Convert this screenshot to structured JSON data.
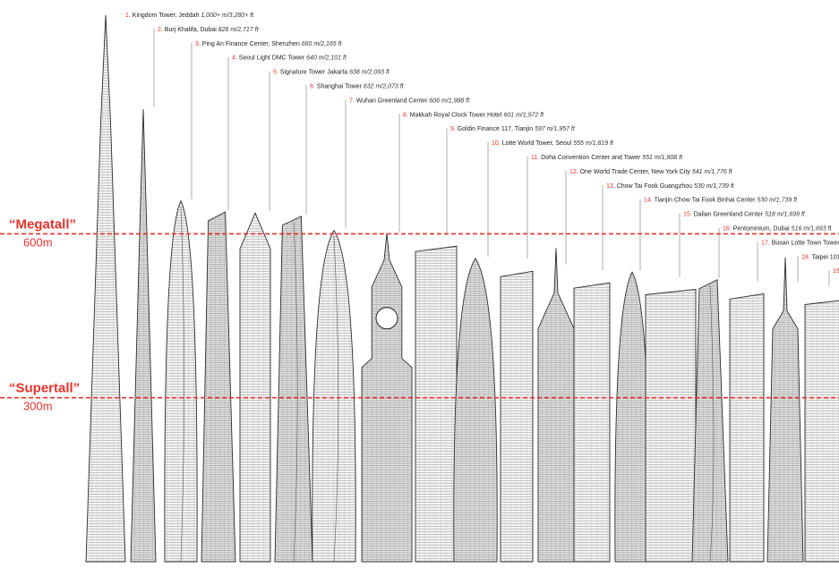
{
  "thresholds": [
    {
      "name": "“Megatall”",
      "value": "600m",
      "meters": 600,
      "color": "#e8322b"
    },
    {
      "name": "“Supertall”",
      "value": "300m",
      "meters": 300,
      "color": "#e8322b"
    }
  ],
  "buildings": [
    {
      "rank": "1.",
      "name": "Kingdom Tower, Jeddah",
      "height": "1,000+ m/3,280+ ft",
      "meters": 1000
    },
    {
      "rank": "2.",
      "name": "Burj Khalifa, Dubai",
      "height": "828 m/2,717 ft",
      "meters": 828
    },
    {
      "rank": "3.",
      "name": "Ping An Finance Center, Shenzhen",
      "height": "660 m/2,165 ft",
      "meters": 660
    },
    {
      "rank": "4.",
      "name": "Seoul Light DMC Tower",
      "height": "640 m/2,101 ft",
      "meters": 640
    },
    {
      "rank": "5.",
      "name": "Signature Tower Jakarta",
      "height": "638 m/2,093 ft",
      "meters": 638
    },
    {
      "rank": "6.",
      "name": "Shanghai Tower",
      "height": "632 m/2,073 ft",
      "meters": 632
    },
    {
      "rank": "7.",
      "name": "Wuhan Greenland Center",
      "height": "606 m/1,988 ft",
      "meters": 606
    },
    {
      "rank": "8.",
      "name": "Makkah Royal Clock Tower Hotel",
      "height": "601 m/1,972 ft",
      "meters": 601
    },
    {
      "rank": "9.",
      "name": "Goldin Finance 117, Tianjin",
      "height": "597 m/1,957 ft",
      "meters": 597
    },
    {
      "rank": "10.",
      "name": "Lotte World Tower, Seoul",
      "height": "555 m/1,819 ft",
      "meters": 555
    },
    {
      "rank": "11.",
      "name": "Doha Convention Center and Tower",
      "height": "551 m/1,808 ft",
      "meters": 551
    },
    {
      "rank": "12.",
      "name": "One World Trade Center, New York City",
      "height": "541 m/1,776 ft",
      "meters": 541
    },
    {
      "rank": "13.",
      "name": "Chow Tai Fook Guangzhou",
      "height": "530 m/1,739 ft",
      "meters": 530
    },
    {
      "rank": "14.",
      "name": "Tianjin Chow Tai Fook Binhai Center",
      "height": "530 m/1,739 ft",
      "meters": 530
    },
    {
      "rank": "15.",
      "name": "Dalian Greenland Center",
      "height": "518 m/1,699 ft",
      "meters": 518
    },
    {
      "rank": "16.",
      "name": "Pentominium, Dubai",
      "height": "516 m/1,693 ft",
      "meters": 516
    },
    {
      "rank": "17.",
      "name": "Busan Lotte Town Tower",
      "height": "",
      "meters": 510
    },
    {
      "rank": "18.",
      "name": "Taipei 101",
      "height": "",
      "meters": 508
    },
    {
      "rank": "19",
      "name": "",
      "height": "",
      "meters": 500
    }
  ]
}
